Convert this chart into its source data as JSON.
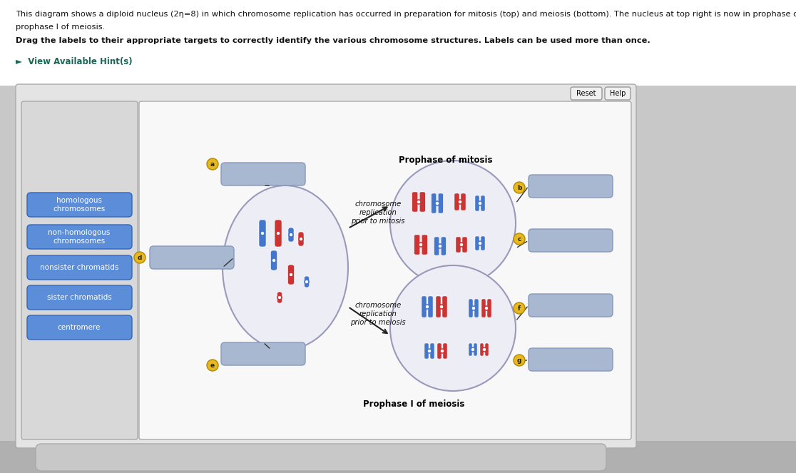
{
  "bg_color": "#c8c8c8",
  "panel_bg": "#e8e8e8",
  "white_panel_bg": "#f5f5f5",
  "left_panel_bg": "#e0e0e0",
  "answer_box_color": "#a8b8d0",
  "label_box_color": "#5b8dd9",
  "title_text": "This diagram shows a diploid nucleus (2η=8) in which chromosome replication has occurred in preparation for mitosis (top) and meiosis (bottom). The nucleus at top right is now in prophase of mito",
  "title_text2": "prophase I of meiosis.",
  "bold_text": "Drag the labels to their appropriate targets to correctly identify the various chromosome structures. Labels can be used more than once.",
  "hint_text": "►  View Available Hint(s)",
  "labels": [
    "homologous\nchromosomes",
    "non-homologous\nchromosomes",
    "nonsister chromatids",
    "sister chromatids",
    "centromere"
  ],
  "annot_mitosis_arrow": "chromosome\nreplication\nprior to mitosis",
  "annot_meiosis_arrow": "chromosome\nreplication\nprior to meiosis",
  "prophase_mitosis": "Prophase of mitosis",
  "prophase_meiosis": "Prophase I of meiosis",
  "reset_text": "Reset",
  "help_text": "Help",
  "red": "#cc3333",
  "blue": "#4477cc",
  "nucleus_fc": "#ededf5",
  "nucleus_ec": "#9999bb"
}
